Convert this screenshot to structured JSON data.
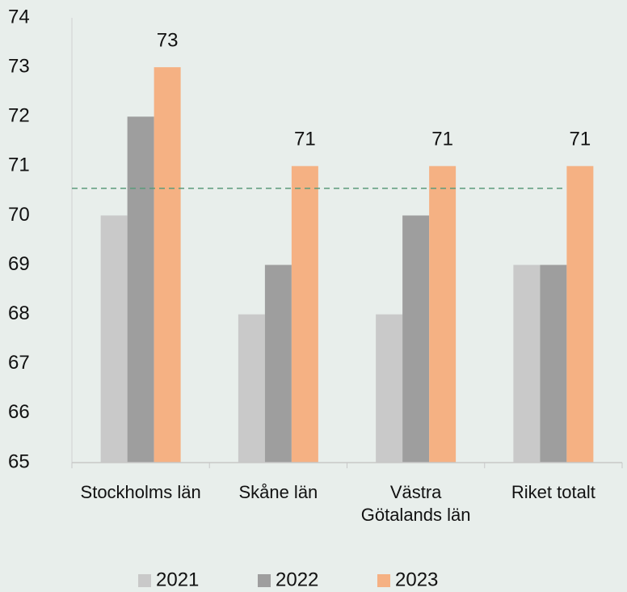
{
  "chart_data": {
    "type": "bar",
    "categories": [
      "Stockholms län",
      "Skåne län",
      "Västra Götalands län",
      "Riket totalt"
    ],
    "series": [
      {
        "name": "2021",
        "color": "#c9c9c9",
        "values": [
          70,
          68,
          68,
          69
        ]
      },
      {
        "name": "2022",
        "color": "#9e9e9e",
        "values": [
          72,
          69,
          70,
          69
        ]
      },
      {
        "name": "2023",
        "color": "#f5b183",
        "values": [
          73,
          71,
          71,
          71
        ],
        "data_labels": true
      }
    ],
    "ylim": [
      65,
      74
    ],
    "yticks": [
      65,
      66,
      67,
      68,
      69,
      70,
      71,
      72,
      73,
      74
    ],
    "reference_line": {
      "value": 70.55,
      "color": "#5b9b7b",
      "dashed": true
    },
    "legend": "bottom",
    "grid": false
  }
}
